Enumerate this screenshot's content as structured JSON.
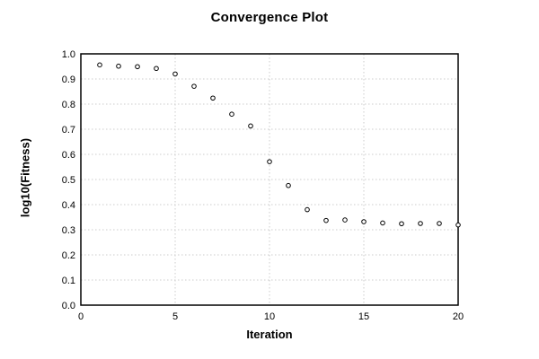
{
  "chart_data": {
    "type": "scatter",
    "title": "Convergence Plot",
    "xlabel": "Iteration",
    "ylabel": "log10(Fitness)",
    "x": [
      1,
      2,
      3,
      4,
      5,
      6,
      7,
      8,
      9,
      10,
      11,
      12,
      13,
      14,
      15,
      16,
      17,
      18,
      19,
      20
    ],
    "y": [
      0.956,
      0.951,
      0.949,
      0.942,
      0.92,
      0.871,
      0.824,
      0.76,
      0.713,
      0.571,
      0.476,
      0.38,
      0.337,
      0.339,
      0.332,
      0.327,
      0.324,
      0.325,
      0.325,
      0.319
    ],
    "xlim": [
      0,
      20
    ],
    "ylim": [
      0.0,
      1.0
    ],
    "x_ticks": [
      "0",
      "5",
      "10",
      "15",
      "20"
    ],
    "y_ticks": [
      "0.0",
      "0.1",
      "0.2",
      "0.3",
      "0.4",
      "0.5",
      "0.6",
      "0.7",
      "0.8",
      "0.9",
      "1.0"
    ],
    "grid": true,
    "legend": "none",
    "marker": "open-circle",
    "colors": {
      "background": "#ffffff",
      "axis": "#000000",
      "grid": "#cccccc",
      "marker_stroke": "#000000",
      "marker_fill": "#ffffff",
      "text": "#000000"
    }
  }
}
